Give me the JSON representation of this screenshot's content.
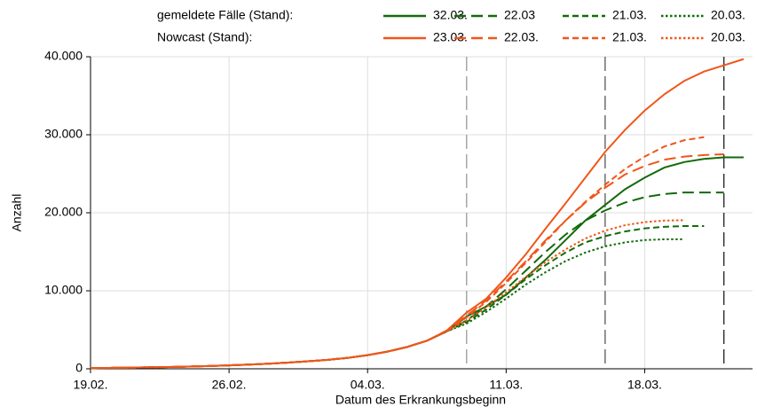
{
  "chart_data": {
    "type": "line",
    "x_label": "Datum des Erkrankungsbeginn",
    "y_label": "Anzahl",
    "legend_titles": [
      "gemeldete Fälle (Stand):",
      "Nowcast (Stand):"
    ],
    "x": [
      0,
      1,
      2,
      3,
      4,
      5,
      6,
      7,
      8,
      9,
      10,
      11,
      12,
      13,
      14,
      15,
      16,
      17,
      18,
      19,
      20,
      21,
      22,
      23,
      24,
      25,
      26,
      27,
      28,
      29,
      30,
      31,
      32,
      33
    ],
    "xlim": [
      0,
      33.45
    ],
    "xticks": [
      {
        "value": 0,
        "label": "19.02."
      },
      {
        "value": 7,
        "label": "26.02."
      },
      {
        "value": 14,
        "label": "04.03."
      },
      {
        "value": 21,
        "label": "11.03."
      },
      {
        "value": 28,
        "label": "18.03."
      }
    ],
    "ylim": [
      0,
      40000
    ],
    "yticks": [
      0,
      {
        "value": 10000,
        "label": "10.000"
      },
      {
        "value": 20000,
        "label": "20.000"
      },
      {
        "value": 30000,
        "label": "30.000"
      },
      {
        "value": 40000,
        "label": "40.000"
      }
    ],
    "grid": true,
    "vlines": [
      {
        "x": 19,
        "color": "#a6a6a6"
      },
      {
        "x": 26,
        "color": "#6e6e6e"
      },
      {
        "x": 32,
        "color": "#333333"
      }
    ],
    "series": [
      {
        "name": "32.03.",
        "color": "#136b0b",
        "dash": "solid",
        "values": [
          100,
          120,
          150,
          190,
          230,
          290,
          360,
          440,
          540,
          660,
          800,
          960,
          1150,
          1400,
          1750,
          2200,
          2800,
          3600,
          4800,
          6700,
          8000,
          9500,
          11700,
          14000,
          16500,
          19000,
          21000,
          23000,
          24500,
          25800,
          26500,
          26900,
          27100,
          27100
        ]
      },
      {
        "name": "22.03",
        "color": "#136b0b",
        "dash": "long",
        "values": [
          100,
          120,
          150,
          190,
          230,
          290,
          360,
          440,
          540,
          660,
          800,
          960,
          1150,
          1400,
          1750,
          2200,
          2800,
          3600,
          4800,
          6200,
          8000,
          10200,
          12600,
          15000,
          17200,
          19000,
          20300,
          21300,
          22000,
          22400,
          22600,
          22600,
          22600,
          null
        ]
      },
      {
        "name": "21.03.",
        "color": "#136b0b",
        "dash": "medium",
        "values": [
          100,
          120,
          150,
          190,
          230,
          290,
          360,
          440,
          540,
          660,
          800,
          960,
          1150,
          1400,
          1750,
          2200,
          2800,
          3600,
          4800,
          6000,
          7600,
          9500,
          11500,
          13300,
          14900,
          16200,
          17000,
          17600,
          18000,
          18200,
          18300,
          18300,
          null,
          null
        ]
      },
      {
        "name": "20.03.",
        "color": "#136b0b",
        "dash": "dotted",
        "values": [
          100,
          120,
          150,
          190,
          230,
          290,
          360,
          440,
          540,
          660,
          800,
          960,
          1150,
          1400,
          1750,
          2200,
          2800,
          3600,
          4800,
          5800,
          7300,
          9000,
          10800,
          12400,
          13800,
          14900,
          15700,
          16200,
          16500,
          16600,
          16600,
          null,
          null,
          null
        ]
      },
      {
        "name": "23.03.",
        "color": "#f0561a",
        "dash": "solid",
        "values": [
          100,
          120,
          150,
          190,
          230,
          290,
          360,
          440,
          540,
          660,
          800,
          960,
          1150,
          1400,
          1750,
          2200,
          2800,
          3600,
          4900,
          7200,
          9000,
          11700,
          14700,
          18000,
          21200,
          24500,
          27800,
          30600,
          33100,
          35200,
          36900,
          38100,
          38900,
          39700
        ]
      },
      {
        "name": "22.03.",
        "color": "#f0561a",
        "dash": "long",
        "values": [
          100,
          120,
          150,
          190,
          230,
          290,
          360,
          440,
          540,
          660,
          800,
          960,
          1150,
          1400,
          1750,
          2200,
          2800,
          3600,
          4900,
          6800,
          8800,
          11200,
          13800,
          16500,
          19000,
          21300,
          23200,
          24900,
          26000,
          26800,
          27200,
          27400,
          27500,
          null
        ]
      },
      {
        "name": "21.03.",
        "color": "#f0561a",
        "dash": "medium",
        "values": [
          100,
          120,
          150,
          190,
          230,
          290,
          360,
          440,
          540,
          660,
          800,
          960,
          1150,
          1400,
          1750,
          2200,
          2800,
          3600,
          4800,
          6600,
          8600,
          11000,
          13600,
          16300,
          19000,
          21400,
          23600,
          25600,
          27200,
          28500,
          29300,
          29700,
          null,
          null
        ]
      },
      {
        "name": "20.03.",
        "color": "#f0561a",
        "dash": "dotted",
        "values": [
          100,
          120,
          150,
          190,
          230,
          290,
          360,
          440,
          540,
          660,
          800,
          960,
          1150,
          1400,
          1750,
          2200,
          2800,
          3600,
          4800,
          6200,
          7900,
          9800,
          11800,
          13700,
          15300,
          16700,
          17700,
          18400,
          18800,
          19000,
          19050,
          null,
          null,
          null
        ]
      }
    ]
  }
}
